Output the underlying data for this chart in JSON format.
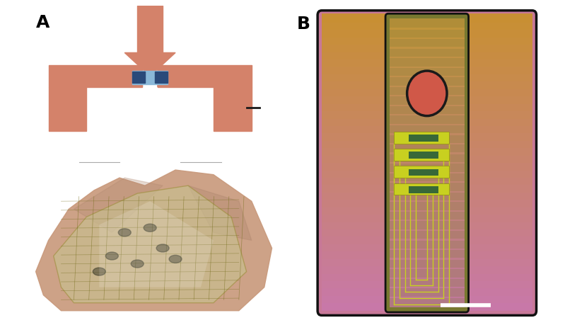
{
  "fig_width": 8.16,
  "fig_height": 4.6,
  "dpi": 100,
  "bg_color": "#ffffff",
  "label_A": "A",
  "label_B": "B",
  "label_fontsize": 18,
  "transistor_color": "#d4826a",
  "ch_blue": "#8ab8d8",
  "ch_dark": "#2a4a7a",
  "scalebar_color": "#1a1a1a",
  "panel_B_bg": "#7a7230",
  "panel_B_outer_pink": "#c87898",
  "panel_B_inner_olive": "#787830",
  "panel_B_probe_pink_top": "#c878a8",
  "panel_B_probe_gold_bot": "#c8a030",
  "panel_B_circle_fill": "#d05848",
  "panel_B_circle_edge": "#1a1a1a",
  "panel_B_yellow_line": "#c8d020",
  "panel_B_green_bar": "#386838",
  "white_scalebar": "#ffffff",
  "line_gray": "#aaaaaa"
}
